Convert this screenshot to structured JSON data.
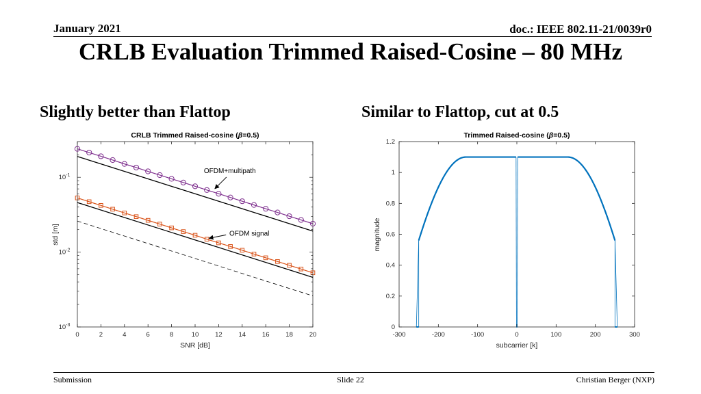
{
  "header": {
    "date": "January 2021",
    "doc": "doc.: IEEE 802.11-21/0039r0"
  },
  "title": "CRLB Evaluation Trimmed Raised-Cosine – 80 MHz",
  "subtitles": {
    "left": "Slightly better than Flattop",
    "right": "Similar to Flattop, cut at 0.5"
  },
  "footer": {
    "left": "Submission",
    "center": "Slide 22",
    "right": "Christian Berger (NXP)"
  },
  "colors": {
    "purple": "#7E2F8E",
    "orange": "#D95319",
    "blue": "#0072BD"
  },
  "chart_data": [
    {
      "type": "line",
      "title_prefix": "CRLB Trimmed Raised-cosine (",
      "title_beta": "β",
      "title_suffix": "=0.5)",
      "xlabel": "SNR [dB]",
      "ylabel": "std [m]",
      "xlim": [
        0,
        20
      ],
      "ylim": [
        0.001,
        0.3
      ],
      "yscale": "log",
      "xticks": [
        "0",
        "2",
        "4",
        "6",
        "8",
        "10",
        "12",
        "14",
        "16",
        "18",
        "20"
      ],
      "yticks": [
        {
          "value": 0.001,
          "base": "10",
          "exp": "-3"
        },
        {
          "value": 0.01,
          "base": "10",
          "exp": "-2"
        },
        {
          "value": 0.1,
          "base": "10",
          "exp": "-1"
        }
      ],
      "x": [
        0,
        1,
        2,
        3,
        4,
        5,
        6,
        7,
        8,
        9,
        10,
        11,
        12,
        13,
        14,
        15,
        16,
        17,
        18,
        19,
        20
      ],
      "series": [
        {
          "values": [
            0.24,
            0.214,
            0.191,
            0.17,
            0.151,
            0.135,
            0.12,
            0.107,
            0.0955,
            0.0851,
            0.0759,
            0.0676,
            0.0603,
            0.0537,
            0.0479,
            0.0427,
            0.038,
            0.0339,
            0.0302,
            0.0269,
            0.024
          ],
          "color": "#7E2F8E",
          "marker": "circle"
        },
        {
          "values": [
            0.19,
            0.0191
          ],
          "x": [
            0,
            20
          ],
          "color": "#000000",
          "marker": "none"
        },
        {
          "values": [
            0.053,
            0.0472,
            0.0421,
            0.0375,
            0.0334,
            0.0298,
            0.0266,
            0.0237,
            0.0211,
            0.0188,
            0.0168,
            0.0149,
            0.0133,
            0.0119,
            0.0106,
            0.00942,
            0.0084,
            0.00749,
            0.00667,
            0.00595,
            0.0053
          ],
          "color": "#D95319",
          "marker": "square"
        },
        {
          "values": [
            0.046,
            0.0046
          ],
          "x": [
            0,
            20
          ],
          "color": "#000000",
          "marker": "none"
        },
        {
          "values": [
            0.026,
            0.0026
          ],
          "x": [
            0,
            20
          ],
          "color": "#000000",
          "marker": "none",
          "dashed": true
        }
      ],
      "annotations": [
        {
          "text": "OFDM+multipath",
          "x": 11.5,
          "y": 0.066
        },
        {
          "text": "OFDM signal",
          "x": 11,
          "y": 0.015
        }
      ],
      "grid": false
    },
    {
      "type": "line",
      "title_prefix": "Trimmed Raised-cosine (",
      "title_beta": "β",
      "title_suffix": "=0.5)",
      "xlabel": "subcarrier [k]",
      "ylabel": "magnitude",
      "xlim": [
        -300,
        300
      ],
      "ylim": [
        0,
        1.2
      ],
      "xticks": [
        "-300",
        "-200",
        "-100",
        "0",
        "100",
        "200",
        "300"
      ],
      "yticks": [
        "0",
        "0.2",
        "0.4",
        "0.6",
        "0.8",
        "1",
        "1.2"
      ],
      "flat_level": 1.1,
      "edge_level": 0.56,
      "flat_start": 130,
      "occupied_edge": 250,
      "band_edge": 256,
      "dc_gap": 2,
      "grid": false
    }
  ]
}
